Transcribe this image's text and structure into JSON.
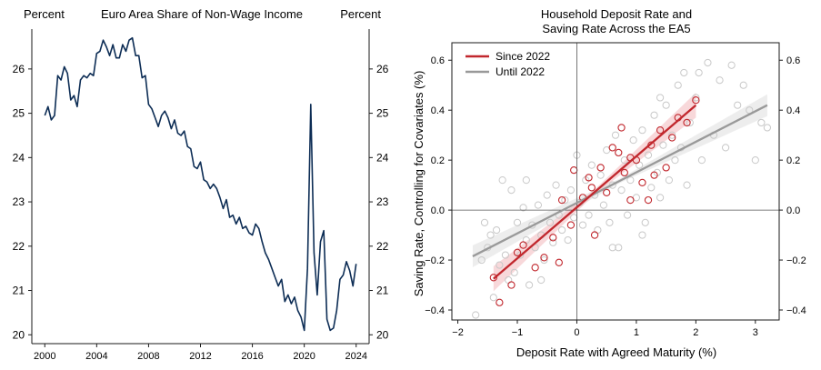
{
  "chart_data": [
    {
      "type": "line",
      "title": "Euro Area Share of Non-Wage Income",
      "left_unit_label": "Percent",
      "right_unit_label": "Percent",
      "x_ticks": [
        "2000",
        "2004",
        "2008",
        "2012",
        "2016",
        "2020",
        "2024"
      ],
      "y_ticks": [
        "20",
        "21",
        "22",
        "23",
        "24",
        "25",
        "26"
      ],
      "xlim": [
        1999,
        2025
      ],
      "ylim": [
        19.8,
        26.9
      ],
      "colors": {
        "line": "#0d2d55"
      },
      "series": [
        {
          "x": [
            2000.0,
            2000.25,
            2000.5,
            2000.75,
            2001.0,
            2001.25,
            2001.5,
            2001.75,
            2002.0,
            2002.25,
            2002.5,
            2002.75,
            2003.0,
            2003.25,
            2003.5,
            2003.75,
            2004.0,
            2004.25,
            2004.5,
            2004.75,
            2005.0,
            2005.25,
            2005.5,
            2005.75,
            2006.0,
            2006.25,
            2006.5,
            2006.75,
            2007.0,
            2007.25,
            2007.5,
            2007.75,
            2008.0,
            2008.25,
            2008.5,
            2008.75,
            2009.0,
            2009.25,
            2009.5,
            2009.75,
            2010.0,
            2010.25,
            2010.5,
            2010.75,
            2011.0,
            2011.25,
            2011.5,
            2011.75,
            2012.0,
            2012.25,
            2012.5,
            2012.75,
            2013.0,
            2013.25,
            2013.5,
            2013.75,
            2014.0,
            2014.25,
            2014.5,
            2014.75,
            2015.0,
            2015.25,
            2015.5,
            2015.75,
            2016.0,
            2016.25,
            2016.5,
            2016.75,
            2017.0,
            2017.25,
            2017.5,
            2017.75,
            2018.0,
            2018.25,
            2018.5,
            2018.75,
            2019.0,
            2019.25,
            2019.5,
            2019.75,
            2020.0,
            2020.25,
            2020.5,
            2020.75,
            2021.0,
            2021.25,
            2021.5,
            2021.75,
            2022.0,
            2022.25,
            2022.5,
            2022.75,
            2023.0,
            2023.25,
            2023.5,
            2023.75,
            2024.0
          ],
          "values": [
            24.95,
            25.15,
            24.85,
            24.95,
            25.85,
            25.75,
            26.05,
            25.9,
            25.3,
            25.4,
            25.15,
            25.75,
            25.85,
            25.8,
            25.9,
            25.85,
            26.35,
            26.4,
            26.65,
            26.5,
            26.3,
            26.55,
            26.25,
            26.25,
            26.55,
            26.4,
            26.65,
            26.7,
            26.3,
            26.3,
            25.8,
            25.85,
            25.2,
            25.1,
            24.9,
            24.7,
            24.95,
            25.05,
            24.9,
            24.65,
            24.85,
            24.55,
            24.5,
            24.6,
            24.25,
            24.2,
            23.8,
            23.75,
            23.9,
            23.5,
            23.45,
            23.3,
            23.4,
            23.3,
            23.1,
            22.85,
            23.05,
            22.65,
            22.7,
            22.5,
            22.65,
            22.4,
            22.45,
            22.3,
            22.25,
            22.5,
            22.4,
            22.1,
            21.85,
            21.7,
            21.5,
            21.3,
            21.1,
            21.25,
            20.75,
            20.9,
            20.7,
            20.85,
            20.55,
            20.4,
            20.1,
            21.5,
            25.2,
            21.85,
            20.9,
            22.1,
            22.35,
            20.35,
            20.1,
            20.15,
            20.55,
            21.25,
            21.35,
            21.65,
            21.45,
            21.1,
            21.6
          ]
        }
      ]
    },
    {
      "type": "scatter",
      "title_lines": [
        "Household Deposit Rate and",
        "Saving Rate Across the EA5"
      ],
      "xlabel": "Deposit Rate with Agreed Maturity (%)",
      "ylabel": "Saving Rate, Controlling for Covariates (%)",
      "x_ticks": [
        "−2",
        "−1",
        "0",
        "1",
        "2",
        "3"
      ],
      "y_ticks": [
        "−0.4",
        "−0.2",
        "0.0",
        "0.2",
        "0.4",
        "0.6"
      ],
      "xlim": [
        -2.1,
        3.4
      ],
      "ylim": [
        -0.44,
        0.67
      ],
      "grid": false,
      "reference_lines": {
        "x": 0,
        "y": 0
      },
      "legend": {
        "position": "top-left",
        "entries": [
          "Since 2022",
          "Until 2022"
        ]
      },
      "colors": {
        "since_2022": "#c1272d",
        "until_2022": "#999999",
        "until_2022_points": "#c8c8c8",
        "band_since": "#f2b8bb",
        "band_until": "#dedede"
      },
      "fits": [
        {
          "name": "Since 2022",
          "x": [
            -1.4,
            2.0
          ],
          "y": [
            -0.275,
            0.42
          ]
        },
        {
          "name": "Until 2022",
          "x": [
            -1.75,
            3.2
          ],
          "y": [
            -0.185,
            0.42
          ]
        }
      ],
      "series": [
        {
          "name": "Since 2022",
          "points": [
            [
              -1.4,
              -0.27
            ],
            [
              -1.3,
              -0.37
            ],
            [
              -1.1,
              -0.3
            ],
            [
              -1.0,
              -0.17
            ],
            [
              -0.9,
              -0.14
            ],
            [
              -0.7,
              -0.23
            ],
            [
              -0.55,
              -0.19
            ],
            [
              -0.4,
              -0.11
            ],
            [
              -0.3,
              -0.21
            ],
            [
              -0.1,
              -0.06
            ],
            [
              -0.05,
              0.16
            ],
            [
              0.1,
              0.05
            ],
            [
              0.2,
              0.13
            ],
            [
              0.25,
              0.09
            ],
            [
              0.3,
              -0.1
            ],
            [
              0.4,
              0.17
            ],
            [
              0.5,
              0.07
            ],
            [
              0.6,
              0.25
            ],
            [
              0.7,
              0.23
            ],
            [
              0.75,
              0.33
            ],
            [
              0.8,
              0.15
            ],
            [
              0.9,
              0.21
            ],
            [
              1.0,
              0.2
            ],
            [
              1.1,
              0.11
            ],
            [
              1.2,
              0.04
            ],
            [
              1.3,
              0.14
            ],
            [
              1.4,
              0.32
            ],
            [
              1.5,
              0.17
            ],
            [
              1.6,
              0.29
            ],
            [
              1.7,
              0.37
            ],
            [
              1.85,
              0.35
            ],
            [
              2.0,
              0.44
            ],
            [
              0.9,
              0.04
            ],
            [
              1.25,
              0.26
            ],
            [
              -0.25,
              0.04
            ]
          ]
        },
        {
          "name": "Until 2022",
          "points": [
            [
              -1.7,
              -0.42
            ],
            [
              -1.6,
              -0.2
            ],
            [
              -1.5,
              -0.15
            ],
            [
              -1.4,
              -0.35
            ],
            [
              -1.35,
              -0.08
            ],
            [
              -1.3,
              -0.22
            ],
            [
              -1.25,
              0.12
            ],
            [
              -1.2,
              -0.18
            ],
            [
              -1.1,
              0.08
            ],
            [
              -1.05,
              -0.25
            ],
            [
              -1.0,
              -0.05
            ],
            [
              -0.95,
              -0.18
            ],
            [
              -0.9,
              0.01
            ],
            [
              -0.85,
              -0.12
            ],
            [
              -0.8,
              -0.3
            ],
            [
              -0.75,
              -0.06
            ],
            [
              -0.7,
              -0.15
            ],
            [
              -0.65,
              0.02
            ],
            [
              -0.6,
              -0.1
            ],
            [
              -0.55,
              -0.2
            ],
            [
              -0.5,
              0.06
            ],
            [
              -0.45,
              -0.05
            ],
            [
              -0.4,
              -0.13
            ],
            [
              -0.35,
              0.1
            ],
            [
              -0.3,
              -0.02
            ],
            [
              -0.25,
              -0.08
            ],
            [
              -0.2,
              0.04
            ],
            [
              -0.15,
              -0.12
            ],
            [
              -0.1,
              0.08
            ],
            [
              -0.05,
              -0.03
            ],
            [
              0.05,
              0.03
            ],
            [
              0.1,
              -0.06
            ],
            [
              0.15,
              0.12
            ],
            [
              0.2,
              -0.02
            ],
            [
              0.25,
              0.18
            ],
            [
              0.3,
              0.06
            ],
            [
              0.35,
              -0.08
            ],
            [
              0.4,
              0.14
            ],
            [
              0.45,
              0.02
            ],
            [
              0.5,
              0.24
            ],
            [
              0.55,
              -0.05
            ],
            [
              0.6,
              0.1
            ],
            [
              0.65,
              0.3
            ],
            [
              0.7,
              -0.15
            ],
            [
              0.75,
              0.08
            ],
            [
              0.8,
              0.2
            ],
            [
              0.85,
              -0.02
            ],
            [
              0.9,
              0.12
            ],
            [
              0.95,
              0.28
            ],
            [
              1.0,
              0.05
            ],
            [
              1.05,
              0.18
            ],
            [
              1.1,
              0.32
            ],
            [
              1.15,
              -0.05
            ],
            [
              1.2,
              0.22
            ],
            [
              1.25,
              0.09
            ],
            [
              1.3,
              0.38
            ],
            [
              1.35,
              0.15
            ],
            [
              1.4,
              0.05
            ],
            [
              1.45,
              0.26
            ],
            [
              1.5,
              0.42
            ],
            [
              1.55,
              0.12
            ],
            [
              1.6,
              0.3
            ],
            [
              1.65,
              0.2
            ],
            [
              1.7,
              0.5
            ],
            [
              1.75,
              0.25
            ],
            [
              1.8,
              0.55
            ],
            [
              1.85,
              0.1
            ],
            [
              1.9,
              0.35
            ],
            [
              2.0,
              0.45
            ],
            [
              2.1,
              0.2
            ],
            [
              2.2,
              0.59
            ],
            [
              2.3,
              0.3
            ],
            [
              2.4,
              0.52
            ],
            [
              2.5,
              0.25
            ],
            [
              2.6,
              0.58
            ],
            [
              2.7,
              0.42
            ],
            [
              2.8,
              0.5
            ],
            [
              2.9,
              0.4
            ],
            [
              3.0,
              0.2
            ],
            [
              3.1,
              0.35
            ],
            [
              3.2,
              0.33
            ],
            [
              -1.55,
              -0.05
            ],
            [
              -1.45,
              -0.1
            ],
            [
              -1.15,
              -0.28
            ],
            [
              -0.85,
              0.12
            ],
            [
              -0.6,
              -0.28
            ],
            [
              0.0,
              0.22
            ],
            [
              0.6,
              -0.15
            ],
            [
              1.1,
              -0.1
            ],
            [
              1.4,
              0.45
            ],
            [
              2.05,
              0.55
            ]
          ]
        }
      ]
    }
  ]
}
